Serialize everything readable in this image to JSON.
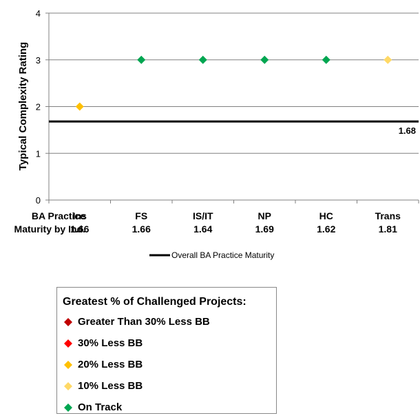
{
  "chart_data": {
    "type": "scatter",
    "ylabel": "Typical Complexity Rating",
    "ylim": [
      0,
      4
    ],
    "yticks": [
      "0",
      "1",
      "2",
      "3",
      "4"
    ],
    "grid": true,
    "categories": [
      "Ins",
      "FS",
      "IS/IT",
      "NP",
      "HC",
      "Trans"
    ],
    "maturity_row_label": [
      "BA Practice",
      "Maturity by Ind."
    ],
    "maturity": [
      "1.66",
      "1.66",
      "1.64",
      "1.69",
      "1.62",
      "1.81"
    ],
    "points": [
      {
        "category": "Ins",
        "value": 2,
        "status": "20% Less BB"
      },
      {
        "category": "FS",
        "value": 3,
        "status": "On Track"
      },
      {
        "category": "IS/IT",
        "value": 3,
        "status": "On Track"
      },
      {
        "category": "NP",
        "value": 3,
        "status": "On Track"
      },
      {
        "category": "HC",
        "value": 3,
        "status": "On Track"
      },
      {
        "category": "Trans",
        "value": 3,
        "status": "10% Less BB"
      }
    ],
    "reference_line": {
      "name": "Overall BA Practice Maturity",
      "value": 1.68,
      "label": "1.68",
      "color": "#000000"
    },
    "status_legend": {
      "title": "Greatest % of Challenged Projects:",
      "items": [
        {
          "label": "Greater Than 30% Less BB",
          "color": "#c00000"
        },
        {
          "label": "30% Less BB",
          "color": "#ff0000"
        },
        {
          "label": "20% Less BB",
          "color": "#ffc000"
        },
        {
          "label": "10% Less BB",
          "color": "#ffd966"
        },
        {
          "label": "On Track",
          "color": "#00a651"
        }
      ]
    },
    "gridline_color": "#808080"
  }
}
